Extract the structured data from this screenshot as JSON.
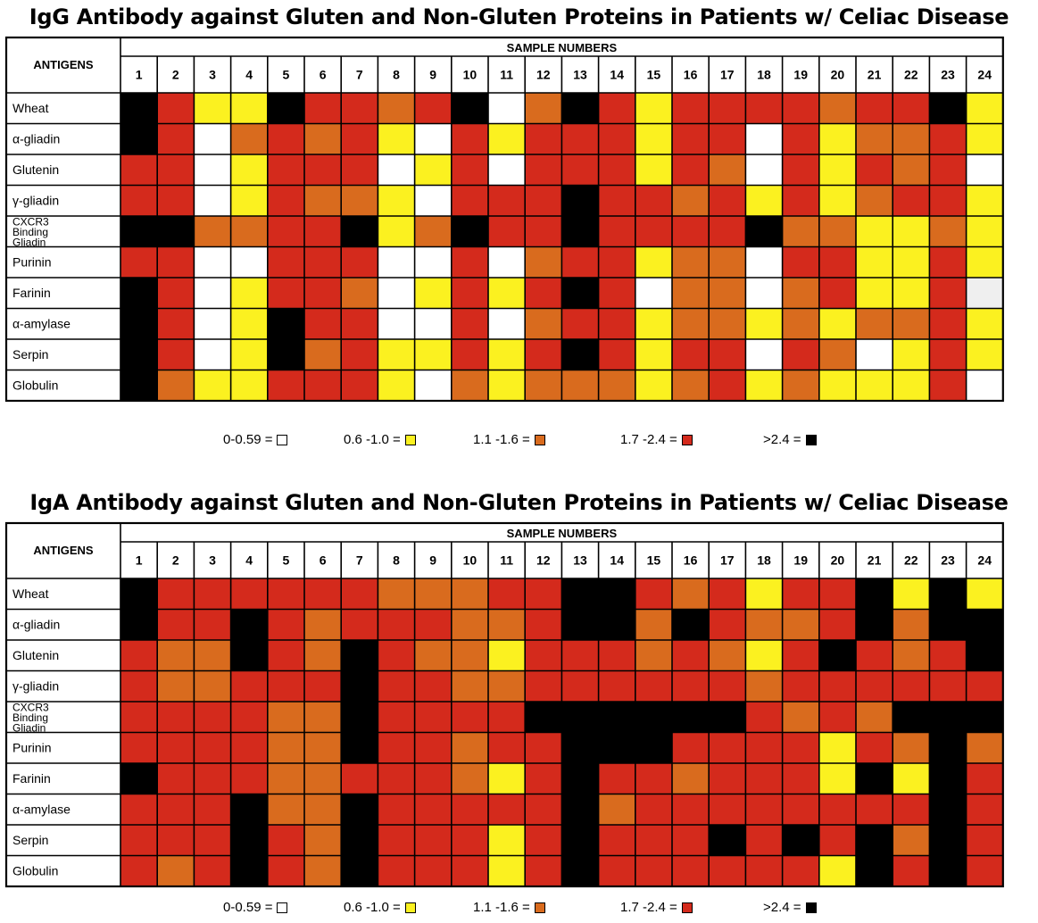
{
  "levels": {
    "W": {
      "label": "0-0.59 =",
      "color": "#ffffff"
    },
    "Y": {
      "label": "0.6 -1.0 =",
      "color": "#fbf120"
    },
    "O": {
      "label": "1.1 -1.6 =",
      "color": "#d96b1e"
    },
    "R": {
      "label": "1.7 -2.4 =",
      "color": "#d42a1c"
    },
    "K": {
      "label": ">2.4 =",
      "color": "#000000"
    },
    "G": {
      "label": "",
      "color": "#efefef"
    }
  },
  "chart_data": [
    {
      "type": "heatmap",
      "title": "IgG Antibody against Gluten and Non-Gluten Proteins in Patients w/ Celiac Disease",
      "row_header": "ANTIGENS",
      "column_header": "SAMPLE NUMBERS",
      "columns": [
        "1",
        "2",
        "3",
        "4",
        "5",
        "6",
        "7",
        "8",
        "9",
        "10",
        "11",
        "12",
        "13",
        "14",
        "15",
        "16",
        "17",
        "18",
        "19",
        "20",
        "21",
        "22",
        "23",
        "24"
      ],
      "rows": [
        {
          "label": [
            "Wheat"
          ],
          "cells": "KRYYKRRORKWOKRYRRRRORRKY"
        },
        {
          "label": [
            "α-gliadin"
          ],
          "cells": "KRWORORYWRYRRRYRRWRYOORY"
        },
        {
          "label": [
            "Glutenin"
          ],
          "cells": "RRWYRRRWYRWRRRYROWRYRORW"
        },
        {
          "label": [
            "γ-gliadin"
          ],
          "cells": "RRWYROOYWRRRKRRORYRYORRY"
        },
        {
          "label": [
            "CXCR3",
            "Binding",
            "Gliadin"
          ],
          "cells": "KKOORRKYOKRRKRRRRKOOYYOY"
        },
        {
          "label": [
            "Purinin"
          ],
          "cells": "RRWWRRRWWRWORRYOOWRRYYRY"
        },
        {
          "label": [
            "Farinin"
          ],
          "cells": "KRWYRROWYRYRKRWOOWORYYRG"
        },
        {
          "label": [
            "α-amylase"
          ],
          "cells": "KRWYKRRWWRWORRYOOYOYOORY"
        },
        {
          "label": [
            "Serpin"
          ],
          "cells": "KRWYKORYYRYRKRYRRWROWYRY"
        },
        {
          "label": [
            "Globulin"
          ],
          "cells": "KOYYRRRYWOYOOOYORYOYYYRW"
        }
      ],
      "legend": [
        "W",
        "Y",
        "O",
        "R",
        "K"
      ]
    },
    {
      "type": "heatmap",
      "title": "IgA Antibody against Gluten and Non-Gluten Proteins in Patients w/ Celiac Disease",
      "row_header": "ANTIGENS",
      "column_header": "SAMPLE NUMBERS",
      "columns": [
        "1",
        "2",
        "3",
        "4",
        "5",
        "6",
        "7",
        "8",
        "9",
        "10",
        "11",
        "12",
        "13",
        "14",
        "15",
        "16",
        "17",
        "18",
        "19",
        "20",
        "21",
        "22",
        "23",
        "24"
      ],
      "rows": [
        {
          "label": [
            "Wheat"
          ],
          "cells": "KRRRRRROOORRKKRORYRRKYKY"
        },
        {
          "label": [
            "α-gliadin"
          ],
          "cells": "KRRKRORRROORKKOKROORKOKK"
        },
        {
          "label": [
            "Glutenin"
          ],
          "cells": "ROOKROKROOYRRROROYRKRORK"
        },
        {
          "label": [
            "γ-gliadin"
          ],
          "cells": "ROORRRKRROORRRRRRORRRRRR"
        },
        {
          "label": [
            "CXCR3",
            "Binding",
            "Gliadin"
          ],
          "cells": "RRRROOKRRRRKKKKKKROROKKK"
        },
        {
          "label": [
            "Purinin"
          ],
          "cells": "RRRROOKRRORRKKKRRRRYROKO"
        },
        {
          "label": [
            "Farinin"
          ],
          "cells": "KRRROORRROYRKRRORRRYKYKR"
        },
        {
          "label": [
            "α-amylase"
          ],
          "cells": "RRRKOOKRRRRRKORRRRRRRRKR"
        },
        {
          "label": [
            "Serpin"
          ],
          "cells": "RRRKROKRRRYRKRRRKRKRKOKR"
        },
        {
          "label": [
            "Globulin"
          ],
          "cells": "RORKROKRRRYRKRRRRRRYKRKR"
        }
      ],
      "legend": [
        "W",
        "Y",
        "O",
        "R",
        "K"
      ]
    }
  ]
}
